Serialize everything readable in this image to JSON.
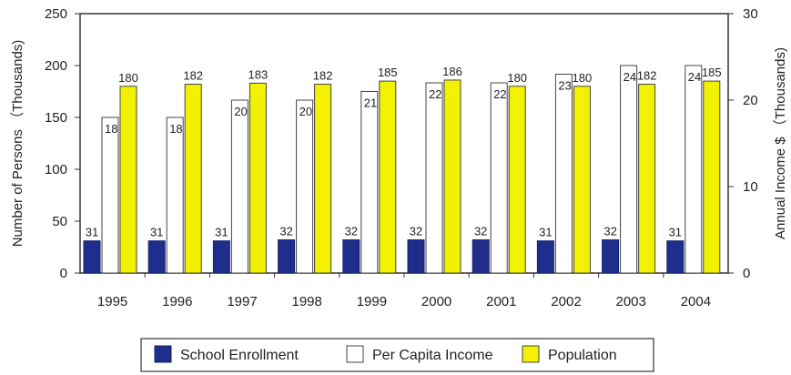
{
  "chart_data": {
    "type": "bar",
    "categories": [
      "1995",
      "1996",
      "1997",
      "1998",
      "1999",
      "2000",
      "2001",
      "2002",
      "2003",
      "2004"
    ],
    "series": [
      {
        "name": "School Enrollment",
        "axis": "left",
        "color": "#1f2e8c",
        "values": [
          31,
          31,
          31,
          32,
          32,
          32,
          32,
          31,
          32,
          31
        ]
      },
      {
        "name": "Per Capita Income",
        "axis": "right",
        "color": "#ffffff",
        "values": [
          18,
          18,
          20,
          20,
          21,
          22,
          22,
          23,
          24,
          24
        ]
      },
      {
        "name": "Population",
        "axis": "left",
        "color": "#f2f200",
        "values": [
          180,
          182,
          183,
          182,
          185,
          186,
          180,
          180,
          182,
          185
        ]
      }
    ],
    "ylabel": "Number of Persons （Thousands)",
    "y2label": "Annual Income $ （Thousands)",
    "ylim": [
      0,
      250
    ],
    "y2lim": [
      0,
      30
    ],
    "yticks": [
      0,
      50,
      100,
      150,
      200,
      250
    ],
    "y2ticks": [
      0,
      10,
      20,
      30
    ],
    "legend_position": "bottom",
    "grid": false
  }
}
